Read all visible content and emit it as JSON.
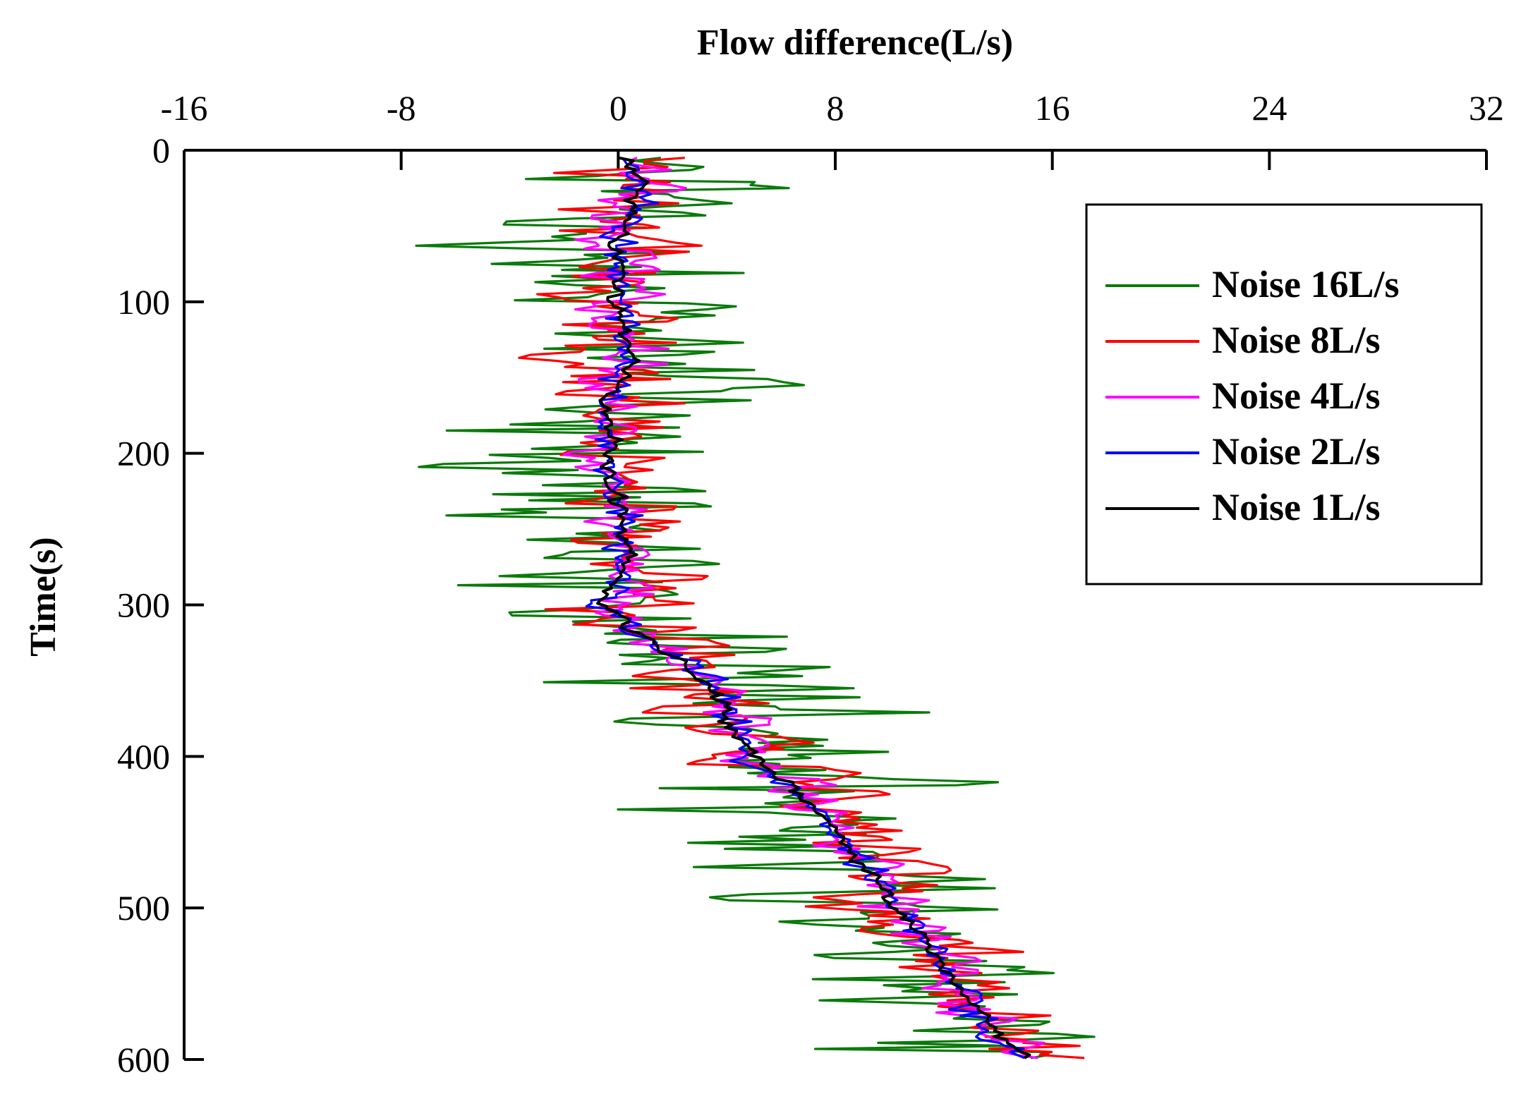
{
  "chart_data": {
    "type": "line",
    "title": "",
    "xlabel": "Flow difference(L/s)",
    "ylabel": "Time(s)",
    "xlim": [
      -16,
      32
    ],
    "ylim": [
      0,
      600
    ],
    "x_ticks": [
      "-16",
      "-8",
      "0",
      "8",
      "16",
      "24",
      "32"
    ],
    "y_ticks": [
      "0",
      "100",
      "200",
      "300",
      "400",
      "500",
      "600"
    ],
    "y_inverted": true,
    "x_axis_position": "top",
    "legend_position": "top-right",
    "grid": false,
    "t": [
      0,
      20,
      40,
      60,
      80,
      100,
      120,
      140,
      160,
      180,
      200,
      220,
      240,
      260,
      280,
      300,
      320,
      340,
      360,
      380,
      400,
      420,
      440,
      460,
      480,
      500,
      520,
      540,
      560,
      580,
      600
    ],
    "trend": [
      0,
      0.8,
      0.6,
      -0.2,
      0.3,
      -0.1,
      0.4,
      0.5,
      -0.3,
      -0.5,
      -0.1,
      -0.3,
      0.1,
      0.2,
      0.1,
      -0.4,
      0.8,
      2.5,
      3.8,
      4.2,
      4.9,
      6.3,
      7.6,
      8.6,
      9.5,
      10.2,
      11.3,
      12.1,
      12.8,
      13.6,
      14.9
    ],
    "series": [
      {
        "name": "Noise 16L/s",
        "color": "#0a7a0a",
        "amplitude": 13
      },
      {
        "name": "Noise 8L/s",
        "color": "#ff0000",
        "amplitude": 6.5
      },
      {
        "name": "Noise 4L/s",
        "color": "#ff00ff",
        "amplitude": 3.2
      },
      {
        "name": "Noise 2L/s",
        "color": "#0000ff",
        "amplitude": 1.6
      },
      {
        "name": "Noise 1L/s",
        "color": "#000000",
        "amplitude": 0.8
      }
    ]
  }
}
